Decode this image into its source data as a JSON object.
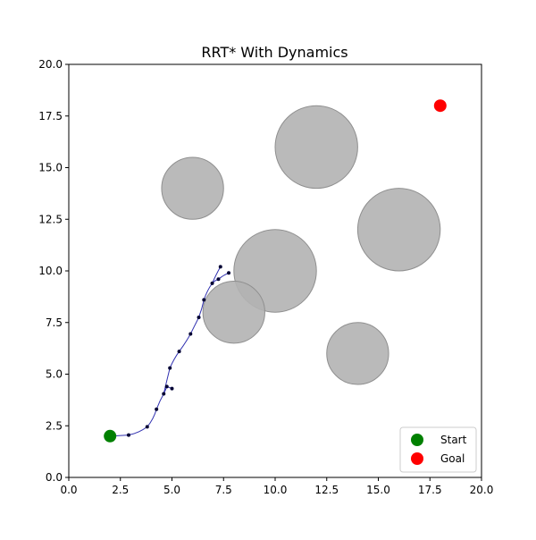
{
  "chart_data": {
    "type": "scatter",
    "title": "RRT* With Dynamics",
    "xlabel": "",
    "ylabel": "",
    "xlim": [
      0,
      20
    ],
    "ylim": [
      0,
      20
    ],
    "xticks": [
      "0.0",
      "2.5",
      "5.0",
      "7.5",
      "10.0",
      "12.5",
      "15.0",
      "17.5",
      "20.0"
    ],
    "yticks": [
      "0.0",
      "2.5",
      "5.0",
      "7.5",
      "10.0",
      "12.5",
      "15.0",
      "17.5",
      "20.0"
    ],
    "grid": false,
    "legend_position": "bottom-right",
    "legend": [
      {
        "label": "Start",
        "color": "#008000"
      },
      {
        "label": "Goal",
        "color": "#ff0000"
      }
    ],
    "start": {
      "x": 2,
      "y": 2,
      "color": "#008000"
    },
    "goal": {
      "x": 18,
      "y": 18,
      "color": "#ff0000"
    },
    "obstacles": [
      {
        "x": 6,
        "y": 14,
        "r": 1.5
      },
      {
        "x": 12,
        "y": 16,
        "r": 2
      },
      {
        "x": 16,
        "y": 12,
        "r": 2
      },
      {
        "x": 10,
        "y": 10,
        "r": 2
      },
      {
        "x": 8,
        "y": 8,
        "r": 1.5
      },
      {
        "x": 14,
        "y": 6,
        "r": 1.5
      }
    ],
    "obstacle_color": "#b3b3b3",
    "path_color": "#3030b0",
    "node_color": "#000033",
    "nodes": [
      {
        "x": 2.9,
        "y": 2.05
      },
      {
        "x": 3.8,
        "y": 2.45
      },
      {
        "x": 4.25,
        "y": 3.3
      },
      {
        "x": 4.6,
        "y": 4.05
      },
      {
        "x": 4.75,
        "y": 4.4
      },
      {
        "x": 5.0,
        "y": 4.3
      },
      {
        "x": 4.9,
        "y": 5.3
      },
      {
        "x": 5.35,
        "y": 6.1
      },
      {
        "x": 5.9,
        "y": 6.95
      },
      {
        "x": 6.3,
        "y": 7.75
      },
      {
        "x": 6.55,
        "y": 8.6
      },
      {
        "x": 6.95,
        "y": 9.4
      },
      {
        "x": 7.25,
        "y": 9.6
      },
      {
        "x": 7.75,
        "y": 9.9
      },
      {
        "x": 7.35,
        "y": 10.2
      }
    ],
    "edges": [
      [
        [
          2.0,
          2.0
        ],
        [
          2.9,
          2.05
        ]
      ],
      [
        [
          2.9,
          2.05
        ],
        [
          3.4,
          2.15
        ],
        [
          3.8,
          2.45
        ]
      ],
      [
        [
          3.8,
          2.45
        ],
        [
          4.1,
          2.8
        ],
        [
          4.25,
          3.3
        ]
      ],
      [
        [
          4.25,
          3.3
        ],
        [
          4.4,
          3.7
        ],
        [
          4.6,
          4.05
        ]
      ],
      [
        [
          4.6,
          4.05
        ],
        [
          4.7,
          4.25
        ],
        [
          4.75,
          4.4
        ]
      ],
      [
        [
          4.75,
          4.4
        ],
        [
          4.9,
          4.35
        ],
        [
          5.0,
          4.3
        ]
      ],
      [
        [
          4.6,
          4.05
        ],
        [
          4.75,
          4.7
        ],
        [
          4.9,
          5.3
        ]
      ],
      [
        [
          4.9,
          5.3
        ],
        [
          5.1,
          5.75
        ],
        [
          5.35,
          6.1
        ]
      ],
      [
        [
          5.35,
          6.1
        ],
        [
          5.65,
          6.5
        ],
        [
          5.9,
          6.95
        ]
      ],
      [
        [
          5.9,
          6.95
        ],
        [
          6.1,
          7.35
        ],
        [
          6.3,
          7.75
        ]
      ],
      [
        [
          6.3,
          7.75
        ],
        [
          6.45,
          8.15
        ],
        [
          6.55,
          8.6
        ]
      ],
      [
        [
          6.55,
          8.6
        ],
        [
          6.7,
          9.05
        ],
        [
          6.95,
          9.4
        ]
      ],
      [
        [
          6.95,
          9.4
        ],
        [
          7.1,
          9.55
        ],
        [
          7.25,
          9.6
        ]
      ],
      [
        [
          7.25,
          9.6
        ],
        [
          7.5,
          9.8
        ],
        [
          7.75,
          9.9
        ]
      ],
      [
        [
          6.95,
          9.4
        ],
        [
          7.15,
          9.85
        ],
        [
          7.35,
          10.2
        ]
      ]
    ]
  }
}
